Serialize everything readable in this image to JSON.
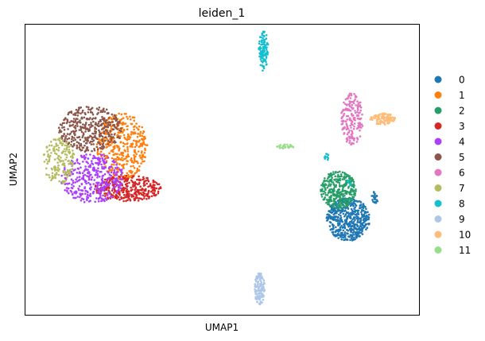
{
  "chart_data": {
    "type": "scatter",
    "title": "leiden_1",
    "xlabel": "UMAP1",
    "ylabel": "UMAP2",
    "xlim": [
      0,
      100
    ],
    "ylim": [
      0,
      100
    ],
    "x_ticks": [],
    "y_ticks": [],
    "grid": false,
    "legend_position": "right",
    "series": [
      {
        "name": "0",
        "color": "#1f77b4",
        "clusters": [
          {
            "cx": 82.0,
            "cy": 33.0,
            "rx": 5.5,
            "ry": 7.5,
            "n": 520
          },
          {
            "cx": 88.7,
            "cy": 40.0,
            "rx": 0.8,
            "ry": 2.5,
            "n": 22
          }
        ]
      },
      {
        "name": "1",
        "color": "#ff7f0e",
        "clusters": [
          {
            "cx": 24.5,
            "cy": 58.0,
            "rx": 6.5,
            "ry": 11.5,
            "n": 420
          }
        ]
      },
      {
        "name": "2",
        "color": "#279e68",
        "clusters": [
          {
            "cx": 79.5,
            "cy": 43.0,
            "rx": 4.5,
            "ry": 6.5,
            "n": 330
          }
        ]
      },
      {
        "name": "3",
        "color": "#d62728",
        "clusters": [
          {
            "cx": 26.0,
            "cy": 43.5,
            "rx": 8.5,
            "ry": 4.5,
            "n": 330
          }
        ]
      },
      {
        "name": "4",
        "color": "#aa40fc",
        "clusters": [
          {
            "cx": 17.0,
            "cy": 47.0,
            "rx": 8.0,
            "ry": 8.5,
            "n": 380
          }
        ]
      },
      {
        "name": "5",
        "color": "#8c564b",
        "clusters": [
          {
            "cx": 16.5,
            "cy": 64.0,
            "rx": 8.0,
            "ry": 8.0,
            "n": 380
          }
        ]
      },
      {
        "name": "6",
        "color": "#e377c2",
        "clusters": [
          {
            "cx": 83.0,
            "cy": 67.5,
            "rx": 2.8,
            "ry": 9.0,
            "n": 190
          }
        ]
      },
      {
        "name": "7",
        "color": "#b5bd61",
        "clusters": [
          {
            "cx": 8.5,
            "cy": 53.0,
            "rx": 4.0,
            "ry": 8.0,
            "n": 170
          }
        ]
      },
      {
        "name": "8",
        "color": "#17becf",
        "clusters": [
          {
            "cx": 60.5,
            "cy": 91.0,
            "rx": 1.2,
            "ry": 7.0,
            "n": 110
          },
          {
            "cx": 76.5,
            "cy": 54.5,
            "rx": 0.5,
            "ry": 1.5,
            "n": 12
          },
          {
            "cx": 82.3,
            "cy": 45.5,
            "rx": 0.6,
            "ry": 1.0,
            "n": 8
          }
        ]
      },
      {
        "name": "9",
        "color": "#aec7e8",
        "clusters": [
          {
            "cx": 59.5,
            "cy": 9.0,
            "rx": 1.3,
            "ry": 5.5,
            "n": 110
          }
        ]
      },
      {
        "name": "10",
        "color": "#ffbb78",
        "clusters": [
          {
            "cx": 90.8,
            "cy": 67.5,
            "rx": 3.2,
            "ry": 2.0,
            "n": 110
          }
        ]
      },
      {
        "name": "11",
        "color": "#98df8a",
        "clusters": [
          {
            "cx": 66.3,
            "cy": 58.0,
            "rx": 2.5,
            "ry": 0.8,
            "n": 30
          }
        ]
      }
    ]
  }
}
